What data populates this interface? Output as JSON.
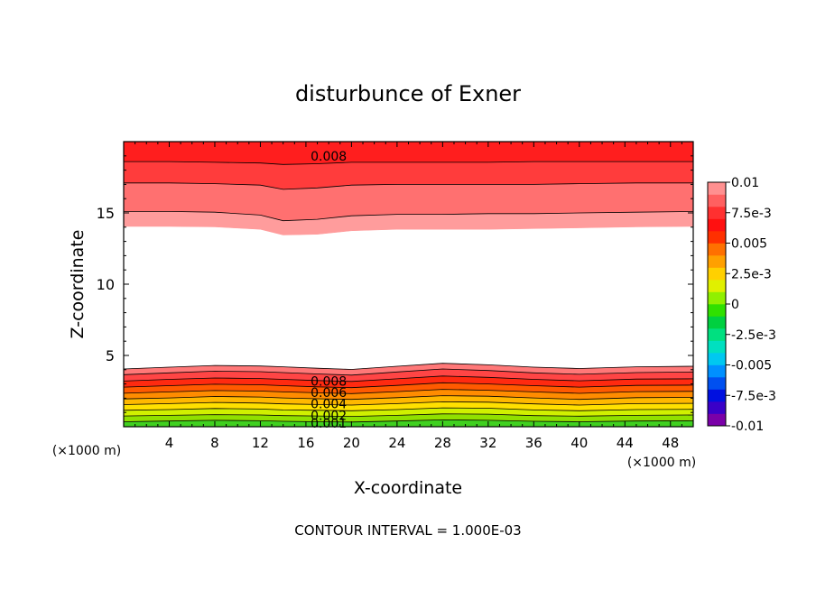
{
  "chart_data": {
    "type": "contour",
    "title": "disturbunce of Exner",
    "xlabel": "X-coordinate",
    "ylabel": "Z-coordinate",
    "x_unit": "(×1000 m)",
    "y_unit": "(×1000 m)",
    "xlim": [
      0,
      50
    ],
    "ylim": [
      0,
      20
    ],
    "x_ticks": [
      4,
      8,
      12,
      16,
      20,
      24,
      28,
      32,
      36,
      40,
      44,
      48
    ],
    "y_ticks": [
      5,
      10,
      15
    ],
    "footer": "CONTOUR INTERVAL = 1.000E-03",
    "contour_interval": 0.001,
    "colorbar": {
      "labels": [
        "0.01",
        "7.5e-3",
        "0.005",
        "2.5e-3",
        "0",
        "-2.5e-3",
        "-0.005",
        "-7.5e-3",
        "-0.01"
      ],
      "range": [
        -0.01,
        0.01
      ],
      "colors": [
        "#7a00a8",
        "#3a00c8",
        "#0010e0",
        "#0050f0",
        "#0090ff",
        "#00c8f0",
        "#00e0c0",
        "#00e080",
        "#00d040",
        "#30e000",
        "#90f000",
        "#e0f000",
        "#ffd000",
        "#ffa000",
        "#ff7000",
        "#ff3000",
        "#ff1010",
        "#ff3030",
        "#ff6060",
        "#ff9090"
      ]
    },
    "bands": [
      {
        "level_min": 0.0,
        "level_max": 0.001,
        "color": "#40d020",
        "z_bottom": [
          0.0,
          0.0,
          0.0,
          0.0,
          0.0,
          0.0,
          0.0,
          0.0,
          0.0,
          0.0,
          0.0,
          0.0,
          0.0,
          0.0
        ],
        "z_top": [
          0.35,
          0.4,
          0.45,
          0.42,
          0.38,
          0.35,
          0.33,
          0.4,
          0.48,
          0.45,
          0.38,
          0.35,
          0.4,
          0.42
        ]
      },
      {
        "level_min": 0.001,
        "level_max": 0.002,
        "color": "#90e000",
        "z_bottom": [
          0.35,
          0.4,
          0.45,
          0.42,
          0.38,
          0.35,
          0.33,
          0.4,
          0.48,
          0.45,
          0.38,
          0.35,
          0.4,
          0.42
        ],
        "z_top": [
          0.75,
          0.8,
          0.85,
          0.82,
          0.78,
          0.75,
          0.72,
          0.8,
          0.9,
          0.88,
          0.78,
          0.74,
          0.8,
          0.82
        ]
      },
      {
        "level_min": 0.002,
        "level_max": 0.003,
        "color": "#d0f000",
        "z_bottom": [
          0.75,
          0.8,
          0.85,
          0.82,
          0.78,
          0.75,
          0.72,
          0.8,
          0.9,
          0.88,
          0.78,
          0.74,
          0.8,
          0.82
        ],
        "z_top": [
          1.15,
          1.2,
          1.28,
          1.24,
          1.18,
          1.15,
          1.12,
          1.2,
          1.32,
          1.3,
          1.18,
          1.12,
          1.2,
          1.22
        ]
      },
      {
        "level_min": 0.003,
        "level_max": 0.004,
        "color": "#ffe000",
        "z_bottom": [
          1.15,
          1.2,
          1.28,
          1.24,
          1.18,
          1.15,
          1.12,
          1.2,
          1.32,
          1.3,
          1.18,
          1.12,
          1.2,
          1.22
        ],
        "z_top": [
          1.55,
          1.62,
          1.7,
          1.66,
          1.6,
          1.56,
          1.52,
          1.62,
          1.75,
          1.72,
          1.6,
          1.52,
          1.62,
          1.64
        ]
      },
      {
        "level_min": 0.004,
        "level_max": 0.005,
        "color": "#ffb800",
        "z_bottom": [
          1.55,
          1.62,
          1.7,
          1.66,
          1.6,
          1.56,
          1.52,
          1.62,
          1.75,
          1.72,
          1.6,
          1.52,
          1.62,
          1.64
        ],
        "z_top": [
          1.95,
          2.02,
          2.12,
          2.08,
          2.02,
          1.96,
          1.92,
          2.04,
          2.18,
          2.14,
          2.02,
          1.92,
          2.04,
          2.06
        ]
      },
      {
        "level_min": 0.005,
        "level_max": 0.006,
        "color": "#ff8c00",
        "z_bottom": [
          1.95,
          2.02,
          2.12,
          2.08,
          2.02,
          1.96,
          1.92,
          2.04,
          2.18,
          2.14,
          2.02,
          1.92,
          2.04,
          2.06
        ],
        "z_top": [
          2.35,
          2.44,
          2.54,
          2.5,
          2.44,
          2.38,
          2.32,
          2.46,
          2.62,
          2.56,
          2.44,
          2.34,
          2.46,
          2.48
        ]
      },
      {
        "level_min": 0.006,
        "level_max": 0.007,
        "color": "#ff5a00",
        "z_bottom": [
          2.35,
          2.44,
          2.54,
          2.5,
          2.44,
          2.38,
          2.32,
          2.46,
          2.62,
          2.56,
          2.44,
          2.34,
          2.46,
          2.48
        ],
        "z_top": [
          2.78,
          2.88,
          2.98,
          2.94,
          2.88,
          2.8,
          2.74,
          2.9,
          3.08,
          3.0,
          2.88,
          2.78,
          2.9,
          2.92
        ]
      },
      {
        "level_min": 0.007,
        "level_max": 0.008,
        "color": "#ff2a10",
        "z_bottom": [
          2.78,
          2.88,
          2.98,
          2.94,
          2.88,
          2.8,
          2.74,
          2.9,
          3.08,
          3.0,
          2.88,
          2.78,
          2.9,
          2.92
        ],
        "z_top": [
          3.2,
          3.32,
          3.42,
          3.38,
          3.32,
          3.24,
          3.18,
          3.36,
          3.56,
          3.46,
          3.32,
          3.22,
          3.34,
          3.36
        ]
      },
      {
        "level_min": 0.008,
        "level_max": 0.009,
        "color": "#ff4545",
        "z_bottom": [
          3.2,
          3.32,
          3.42,
          3.38,
          3.32,
          3.24,
          3.18,
          3.36,
          3.56,
          3.46,
          3.32,
          3.22,
          3.34,
          3.36
        ],
        "z_top": [
          3.65,
          3.78,
          3.9,
          3.86,
          3.8,
          3.7,
          3.62,
          3.84,
          4.05,
          3.94,
          3.78,
          3.68,
          3.8,
          3.84
        ]
      },
      {
        "level_min": 0.009,
        "level_max": 0.01,
        "color": "#ff7878",
        "z_bottom": [
          3.65,
          3.78,
          3.9,
          3.86,
          3.8,
          3.7,
          3.62,
          3.84,
          4.05,
          3.94,
          3.78,
          3.68,
          3.8,
          3.84
        ],
        "z_top": [
          4.05,
          4.18,
          4.3,
          4.26,
          4.2,
          4.1,
          4.02,
          4.24,
          4.45,
          4.34,
          4.18,
          4.08,
          4.2,
          4.24
        ]
      },
      {
        "level_min": 0.009,
        "level_max": 0.01,
        "color": "#ff9c9c",
        "z_bottom": [
          14.05,
          14.05,
          14.02,
          13.85,
          13.45,
          13.5,
          13.75,
          13.85,
          13.85,
          13.85,
          13.9,
          13.95,
          14.02,
          14.05
        ],
        "z_top": [
          15.1,
          15.1,
          15.05,
          14.85,
          14.45,
          14.55,
          14.8,
          14.9,
          14.9,
          14.95,
          14.95,
          15.0,
          15.05,
          15.1
        ]
      },
      {
        "level_min": 0.008,
        "level_max": 0.009,
        "color": "#ff7070",
        "z_bottom": [
          15.1,
          15.1,
          15.05,
          14.85,
          14.45,
          14.55,
          14.8,
          14.9,
          14.9,
          14.95,
          14.95,
          15.0,
          15.05,
          15.1
        ],
        "z_top": [
          17.1,
          17.1,
          17.05,
          16.95,
          16.65,
          16.75,
          16.95,
          17.0,
          17.0,
          17.0,
          17.0,
          17.05,
          17.1,
          17.1
        ]
      },
      {
        "level_min": 0.007,
        "level_max": 0.008,
        "color": "#ff3c3c",
        "z_bottom": [
          17.1,
          17.1,
          17.05,
          16.95,
          16.65,
          16.75,
          16.95,
          17.0,
          17.0,
          17.0,
          17.0,
          17.05,
          17.1,
          17.1
        ],
        "z_top": [
          18.6,
          18.6,
          18.55,
          18.5,
          18.4,
          18.45,
          18.55,
          18.55,
          18.55,
          18.55,
          18.6,
          18.6,
          18.6,
          18.6
        ]
      },
      {
        "level_min": 0.006,
        "level_max": 0.007,
        "color": "#ff1e1e",
        "z_bottom": [
          18.6,
          18.6,
          18.55,
          18.5,
          18.4,
          18.45,
          18.55,
          18.55,
          18.55,
          18.55,
          18.6,
          18.6,
          18.6,
          18.6
        ],
        "z_top": [
          20,
          20,
          20,
          20,
          20,
          20,
          20,
          20,
          20,
          20,
          20,
          20,
          20,
          20
        ]
      }
    ],
    "x_nodes": [
      0,
      4,
      8,
      12,
      14,
      17,
      20,
      24,
      28,
      32,
      36,
      40,
      45,
      50
    ],
    "contour_labels": [
      {
        "text": "0.008",
        "x": 18,
        "z": 19.0
      },
      {
        "text": "0.008",
        "x": 18,
        "z": 3.2
      },
      {
        "text": "0.006",
        "x": 18,
        "z": 2.4
      },
      {
        "text": "0.004",
        "x": 18,
        "z": 1.6
      },
      {
        "text": "0.002",
        "x": 18,
        "z": 0.8
      },
      {
        "text": "0.001",
        "x": 18,
        "z": 0.25
      }
    ]
  }
}
